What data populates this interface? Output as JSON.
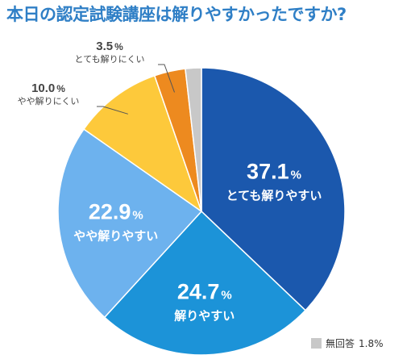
{
  "title": "本日の認定試験講座は解りやすかったですか?",
  "chart_data": {
    "type": "pie",
    "title": "本日の認定試験講座は解りやすかったですか?",
    "slices": [
      {
        "label": "とても解りやすい",
        "value": 37.1,
        "display": "37.1",
        "color": "#1b58ad"
      },
      {
        "label": "解りやすい",
        "value": 24.7,
        "display": "24.7",
        "color": "#1c93d8"
      },
      {
        "label": "やや解りやすい",
        "value": 22.9,
        "display": "22.9",
        "color": "#6db2ee"
      },
      {
        "label": "やや解りにくい",
        "value": 10.0,
        "display": "10.0",
        "color": "#fdc93b"
      },
      {
        "label": "とても解りにくい",
        "value": 3.5,
        "display": "3.5",
        "color": "#ed8a1f"
      },
      {
        "label": "無回答",
        "value": 1.8,
        "display": "1.8",
        "color": "#c8c8c8"
      }
    ],
    "unit": "%",
    "start": "12 o'clock",
    "direction": "clockwise"
  },
  "legend": {
    "label": "無回答",
    "value": "1.8%"
  }
}
